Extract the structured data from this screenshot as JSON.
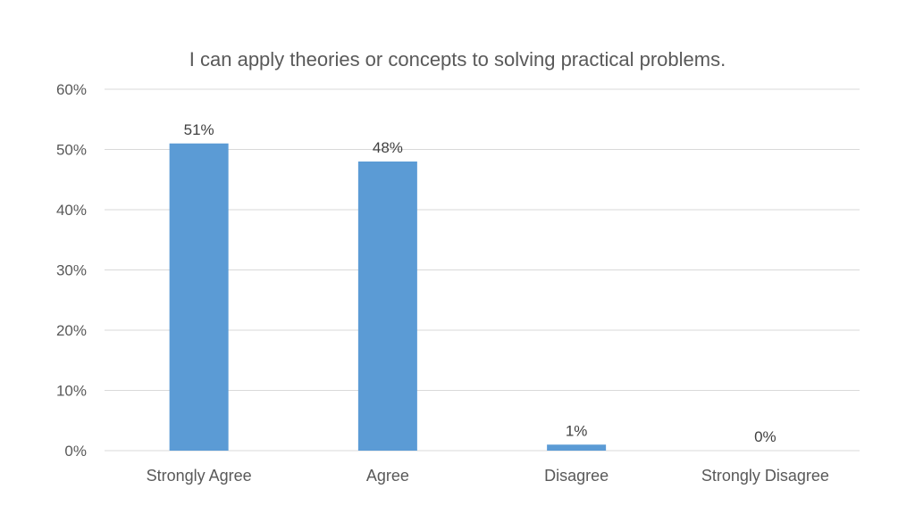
{
  "chart_data": {
    "type": "bar",
    "title": "I can apply theories or concepts to solving practical problems.",
    "categories": [
      "Strongly Agree",
      "Agree",
      "Disagree",
      "Strongly Disagree"
    ],
    "values": [
      51,
      48,
      1,
      0
    ],
    "data_labels": [
      "51%",
      "48%",
      "1%",
      "0%"
    ],
    "ylim": [
      0,
      60
    ],
    "yticks": [
      0,
      10,
      20,
      30,
      40,
      50,
      60
    ],
    "ytick_labels": [
      "0%",
      "10%",
      "20%",
      "30%",
      "40%",
      "50%",
      "60%"
    ],
    "xlabel": "",
    "ylabel": "",
    "grid": true,
    "bar_color": "#5b9bd5"
  }
}
